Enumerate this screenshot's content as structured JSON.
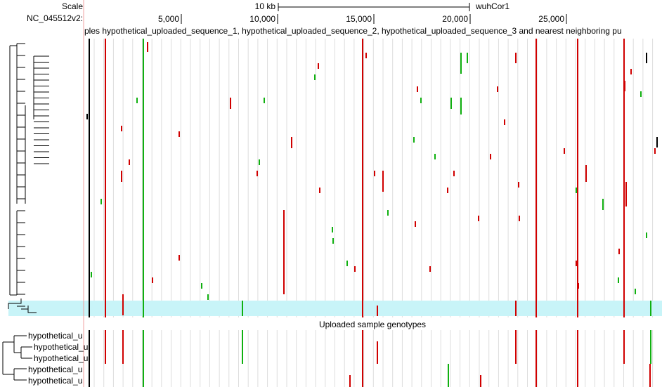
{
  "header": {
    "scale_label": "Scale",
    "scale_size": "10 kb",
    "assembly": "wuhCor1",
    "chrom": "NC_045512v2:",
    "ticks": [
      "5,000",
      "10,000",
      "15,000",
      "20,000",
      "25,000"
    ]
  },
  "tracks": [
    {
      "title": "ples hypothetical_uploaded_sequence_1, hypothetical_uploaded_sequence_2, hypothetical_uploaded_sequence_3 and nearest neighboring pu"
    },
    {
      "title": "Uploaded sample genotypes",
      "samples": [
        "hypothetical_u",
        "hypothetical_u",
        "hypothetical_u",
        "hypothetical_u",
        "hypothetical_u"
      ]
    }
  ]
}
